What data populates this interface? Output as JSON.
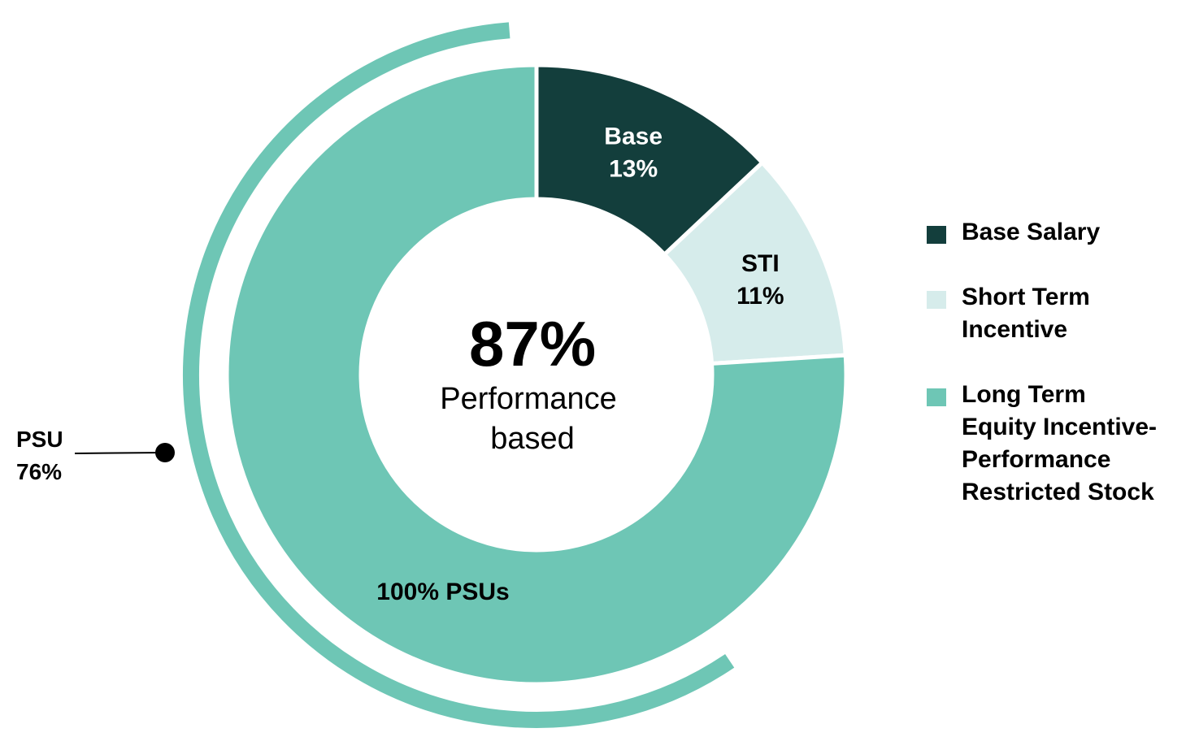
{
  "chart_data": {
    "type": "pie",
    "variant": "donut",
    "categories": [
      "Base Salary",
      "Short Term Incentive",
      "Long Term Equity Incentive- Performance Restricted Stock"
    ],
    "values": [
      13,
      11,
      76
    ],
    "colors": [
      "#133e3c",
      "#d6eceb",
      "#6ec6b5"
    ],
    "label_colors": [
      "#ffffff",
      "#000000",
      "#000000"
    ],
    "slice_labels": [
      {
        "name": "Base",
        "value": "13%"
      },
      {
        "name": "STI",
        "value": "11%"
      },
      {
        "name": "",
        "value": ""
      }
    ],
    "center": {
      "value": "87%",
      "line1": "Performance",
      "line2": "based"
    },
    "outer_arc": {
      "label_name": "PSU",
      "label_value": "76%",
      "color": "#6ec6b5"
    },
    "inner_annotation": "100% PSUs",
    "legend": [
      {
        "label": "Base Salary",
        "color": "#133e3c"
      },
      {
        "label": "Short Term\nIncentive",
        "color": "#d6eceb"
      },
      {
        "label": "Long Term\nEquity Incentive-\nPerformance\nRestricted Stock",
        "color": "#6ec6b5"
      }
    ],
    "legend_position": "right"
  }
}
